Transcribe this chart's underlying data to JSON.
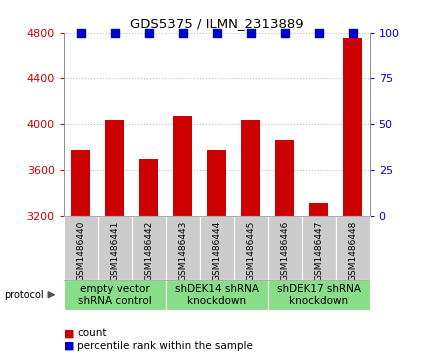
{
  "title": "GDS5375 / ILMN_2313889",
  "samples": [
    "GSM1486440",
    "GSM1486441",
    "GSM1486442",
    "GSM1486443",
    "GSM1486444",
    "GSM1486445",
    "GSM1486446",
    "GSM1486447",
    "GSM1486448"
  ],
  "counts": [
    3780,
    4040,
    3700,
    4070,
    3780,
    4040,
    3860,
    3310,
    4750
  ],
  "percentile_ranks": [
    100,
    100,
    100,
    100,
    100,
    100,
    100,
    100,
    100
  ],
  "ylim_left": [
    3200,
    4800
  ],
  "ylim_right": [
    0,
    100
  ],
  "yticks_left": [
    3200,
    3600,
    4000,
    4400,
    4800
  ],
  "yticks_right": [
    0,
    25,
    50,
    75,
    100
  ],
  "bar_color": "#cc0000",
  "dot_color": "#0000cc",
  "groups": [
    {
      "label": "empty vector\nshRNA control",
      "start": 0,
      "end": 3,
      "color": "#88dd88"
    },
    {
      "label": "shDEK14 shRNA\nknockdown",
      "start": 3,
      "end": 6,
      "color": "#88dd88"
    },
    {
      "label": "shDEK17 shRNA\nknockdown",
      "start": 6,
      "end": 9,
      "color": "#88dd88"
    }
  ],
  "protocol_label": "protocol",
  "legend_count_label": "count",
  "legend_pct_label": "percentile rank within the sample",
  "bar_width": 0.55,
  "dot_size": 28,
  "tick_color_left": "#cc0000",
  "tick_color_right": "#0000cc",
  "bg_color_plot": "#ffffff",
  "bg_color_xtick": "#cccccc",
  "xtick_label_fontsize": 6.5,
  "group_label_fontsize": 7.5
}
